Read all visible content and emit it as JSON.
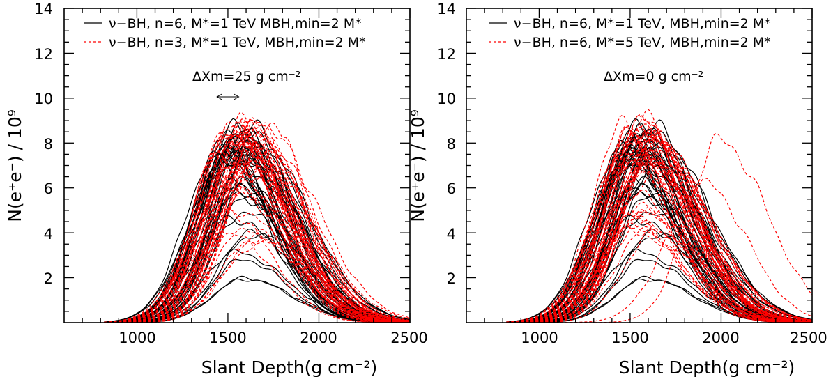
{
  "chart_data": [
    {
      "type": "line",
      "xlabel": "Slant Depth(g cm⁻²)",
      "ylabel": "N(e⁺e⁻) / 10⁹",
      "xlim": [
        600,
        2500
      ],
      "ylim": [
        0,
        14
      ],
      "x_ticks": [
        1000,
        1500,
        2000,
        2500
      ],
      "y_ticks": [
        2,
        4,
        6,
        8,
        10,
        12,
        14
      ],
      "annotation": "ΔXm=25 g cm⁻²",
      "annotation_arrow": [
        1440,
        1560
      ],
      "legend_position": "top",
      "series": [
        {
          "name": "ν−BH, n=6, M*=1 TeV MBH,min=2 M*",
          "color": "#000000",
          "style": "solid",
          "shower_count": 45,
          "peak_depth_range": [
            1450,
            1650
          ],
          "peak_size_range": [
            1.8,
            8.8
          ],
          "seed": 11
        },
        {
          "name": "ν−BH, n=3, M*=1 TeV, MBH,min=2 M*",
          "color": "#ff0000",
          "style": "dashed",
          "shower_count": 50,
          "peak_depth_range": [
            1490,
            1700
          ],
          "peak_size_range": [
            3.5,
            9.0
          ],
          "seed": 23
        }
      ]
    },
    {
      "type": "line",
      "xlabel": "Slant Depth(g cm⁻²)",
      "ylabel": "N(e⁺e⁻) / 10⁹",
      "xlim": [
        600,
        2500
      ],
      "ylim": [
        0,
        14
      ],
      "x_ticks": [
        1000,
        1500,
        2000,
        2500
      ],
      "y_ticks": [
        2,
        4,
        6,
        8,
        10,
        12,
        14
      ],
      "annotation": "ΔXm=0 g cm⁻²",
      "legend_position": "top",
      "series": [
        {
          "name": "ν−BH, n=6, M*=1 TeV, MBH,min=2 M*",
          "color": "#000000",
          "style": "solid",
          "shower_count": 45,
          "peak_depth_range": [
            1450,
            1650
          ],
          "peak_size_range": [
            1.8,
            8.8
          ],
          "seed": 11
        },
        {
          "name": "ν−BH,  n=6, M*=5 TeV, MBH,min=2 M*",
          "color": "#ff0000",
          "style": "dashed",
          "shower_count": 50,
          "peak_depth_range": [
            1450,
            1650
          ],
          "peak_size_range": [
            4.0,
            9.1
          ],
          "late_peaks": [
            [
              1900,
              6.2
            ],
            [
              1990,
              8.1
            ]
          ],
          "seed": 37
        }
      ]
    }
  ]
}
